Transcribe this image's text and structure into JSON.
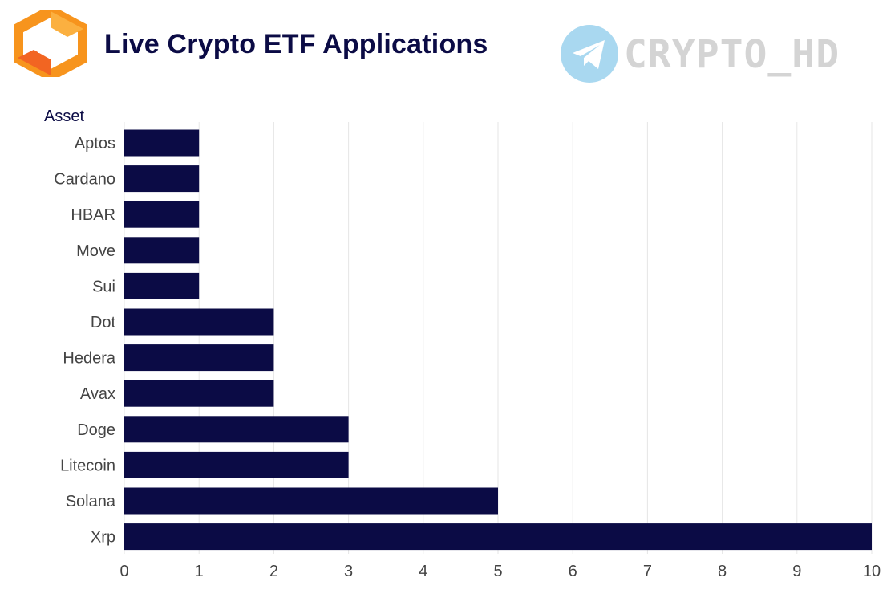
{
  "header": {
    "title": "Live Crypto ETF Applications",
    "watermark": "CRYPTO_HD"
  },
  "colors": {
    "bar": "#0b0b45",
    "grid": "#e6e6e6",
    "logo_orange": "#f7941d",
    "watermark_blue": "#a9d8f0"
  },
  "icons": {
    "logo": "orange-hexagon-logo-icon",
    "watermark": "telegram-icon"
  },
  "chart_data": {
    "type": "bar",
    "orientation": "horizontal",
    "title": "Live Crypto ETF Applications",
    "ylabel": "Asset",
    "xlabel": "",
    "categories": [
      "Aptos",
      "Cardano",
      "HBAR",
      "Move",
      "Sui",
      "Dot",
      "Hedera",
      "Avax",
      "Doge",
      "Litecoin",
      "Solana",
      "Xrp"
    ],
    "values": [
      1,
      1,
      1,
      1,
      1,
      2,
      2,
      2,
      3,
      3,
      5,
      10
    ],
    "xlim": [
      0,
      10
    ],
    "xticks": [
      "0",
      "1",
      "2",
      "3",
      "4",
      "5",
      "6",
      "7",
      "8",
      "9",
      "10"
    ],
    "grid": "vertical",
    "legend": "none"
  }
}
